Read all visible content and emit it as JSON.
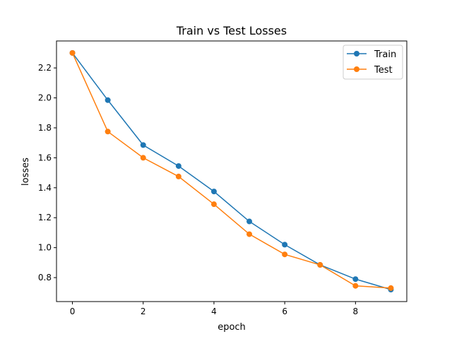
{
  "chart_data": {
    "type": "line",
    "title": "Train vs Test Losses",
    "xlabel": "epoch",
    "ylabel": "losses",
    "xlim": [
      -0.45,
      9.45
    ],
    "ylim": [
      0.64,
      2.38
    ],
    "xticks": [
      0,
      2,
      4,
      6,
      8
    ],
    "xtick_labels": [
      "0",
      "2",
      "4",
      "6",
      "8"
    ],
    "yticks": [
      0.8,
      1.0,
      1.2,
      1.4,
      1.6,
      1.8,
      2.0,
      2.2
    ],
    "ytick_labels": [
      "0.8",
      "1.0",
      "1.2",
      "1.4",
      "1.6",
      "1.8",
      "2.0",
      "2.2"
    ],
    "grid": false,
    "legend_position": "top-right",
    "x": [
      0,
      1,
      2,
      3,
      4,
      5,
      6,
      7,
      8,
      9
    ],
    "series": [
      {
        "name": "Train",
        "color": "#1f77b4",
        "marker": "circle",
        "values": [
          2.3,
          1.985,
          1.685,
          1.545,
          1.375,
          1.175,
          1.02,
          0.885,
          0.79,
          0.72
        ]
      },
      {
        "name": "Test",
        "color": "#ff7f0e",
        "marker": "circle",
        "values": [
          2.3,
          1.775,
          1.6,
          1.475,
          1.29,
          1.09,
          0.955,
          0.885,
          0.745,
          0.73
        ]
      }
    ]
  }
}
